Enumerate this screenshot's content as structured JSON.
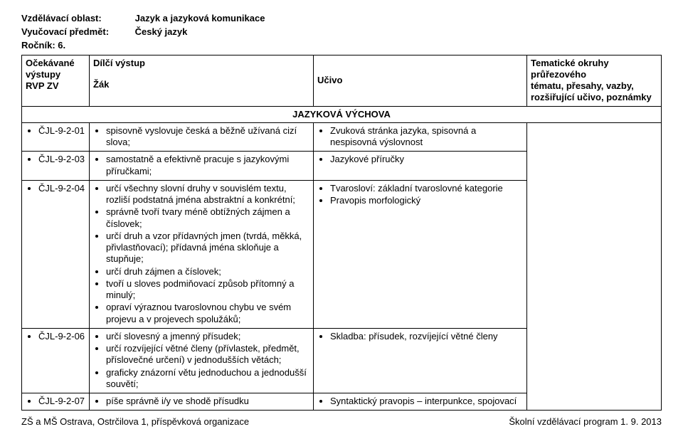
{
  "header": {
    "area_label": "Vzdělávací oblast:",
    "area_value": "Jazyk a jazyková komunikace",
    "subject_label": "Vyučovací předmět:",
    "subject_value": "Český jazyk",
    "grade_label": "Ročník: 6."
  },
  "table_head": {
    "c1a": "Očekávané",
    "c1b": "výstupy",
    "c1c": "RVP ZV",
    "c2a": "Dílčí výstup",
    "c2b": "Žák",
    "c3": "Učivo",
    "c4a": "Tematické okruhy průřezového",
    "c4b": "tématu, přesahy, vazby,",
    "c4c": "rozšiřující učivo, poznámky"
  },
  "section_title": "JAZYKOVÁ VÝCHOVA",
  "rows": [
    {
      "code": "ČJL-9-2-01",
      "out": [
        "spisovně vyslovuje česká a běžně užívaná cizí slova;"
      ],
      "uc": [
        "Zvuková stránka jazyka, spisovná a nespisovná výslovnost"
      ]
    },
    {
      "code": "ČJL-9-2-03",
      "out": [
        "samostatně a efektivně pracuje s jazykovými příručkami;"
      ],
      "uc": [
        "Jazykové příručky"
      ]
    },
    {
      "code": "ČJL-9-2-04",
      "out": [
        "určí všechny slovní druhy v souvislém textu, rozliší podstatná jména abstraktní a konkrétní;",
        "správně tvoří tvary méně obtížných zájmen a číslovek;",
        "určí druh a vzor přídavných jmen (tvrdá, měkká, přivlastňovací); přídavná jména skloňuje a stupňuje;",
        "určí druh zájmen a číslovek;",
        "tvoří u sloves podmiňovací způsob přítomný a minulý;",
        "opraví výraznou tvaroslovnou chybu ve svém projevu a v projevech spolužáků;"
      ],
      "uc": [
        "Tvarosloví: základní tvaroslovné kategorie",
        "Pravopis morfologický"
      ]
    },
    {
      "code": "ČJL-9-2-06",
      "out": [
        "určí slovesný a jmenný přísudek;",
        "určí rozvíjející větné členy (přívlastek, předmět, příslovečné určení) v jednodušších větách;",
        "graficky znázorní větu jednoduchou a jednodušší souvětí;"
      ],
      "uc": [
        "Skladba: přísudek, rozvíjející větné členy"
      ]
    },
    {
      "code": "ČJL-9-2-07",
      "out": [
        "píše správně i/y ve shodě přísudku"
      ],
      "uc": [
        "Syntaktický pravopis – interpunkce, spojovací"
      ]
    }
  ],
  "footer": {
    "left": "ZŠ a MŠ Ostrava, Ostrčilova 1, příspěvková organizace",
    "right": "Školní vzdělávací program   1. 9. 2013"
  }
}
